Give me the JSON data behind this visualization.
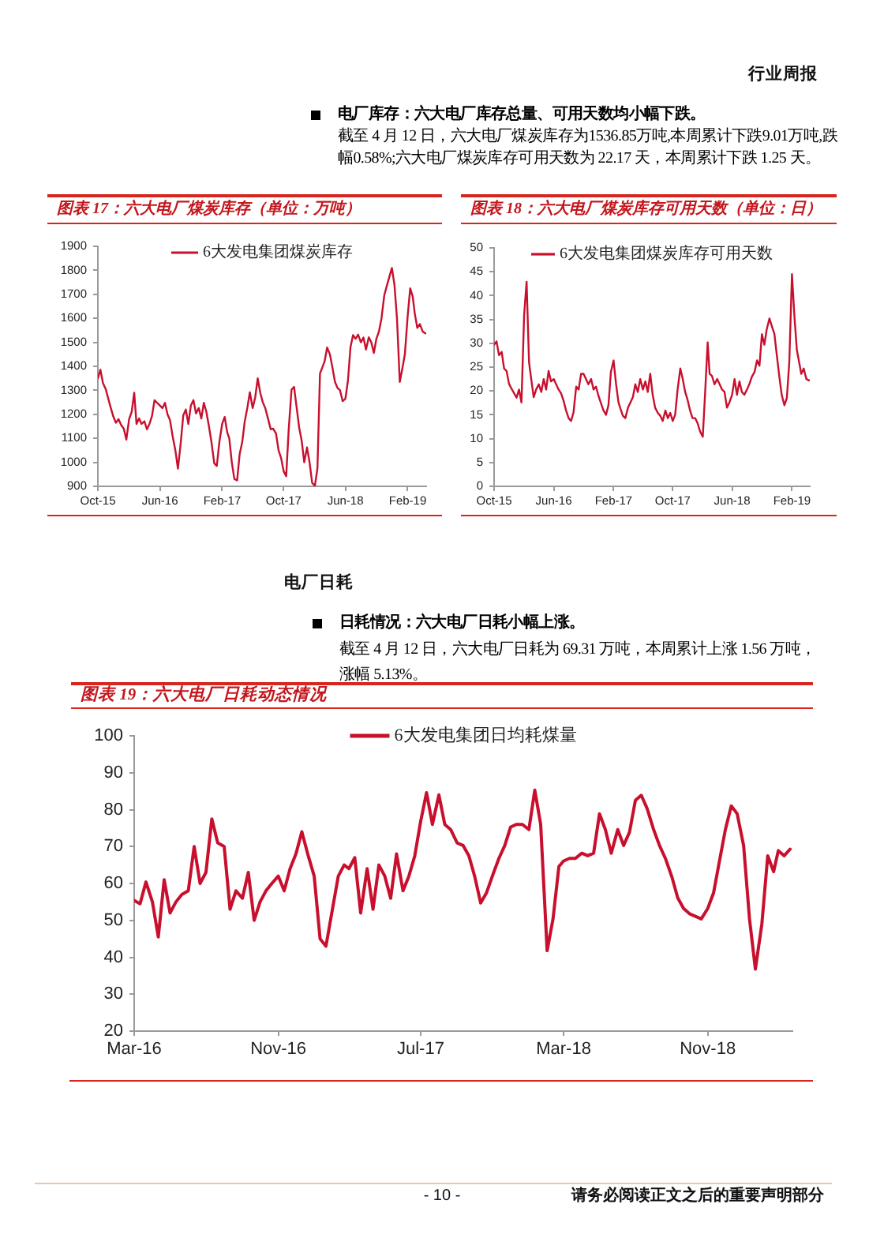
{
  "chart_data": [
    {
      "type": "line",
      "title": "图表 17：六大电厂煤炭库存（单位：万吨）",
      "annotations": [
        "行业周报",
        "电厂库存：六大电厂库存总量、可用天数均小幅下跌。",
        "截至 4 月 12 日，六大电厂煤炭库存为1536.85万吨,本周累计下跌9.01万吨,跌幅0.58%;六大电厂煤炭库存可用天数为 22.17 天，本周累计下跌 1.25 天。"
      ],
      "x": [
        "2015-10-01",
        "2015-10-11",
        "2015-10-21",
        "2015-11-01",
        "2015-11-11",
        "2015-11-21",
        "2015-12-01",
        "2015-12-11",
        "2015-12-21",
        "2016-01-01",
        "2016-01-11",
        "2016-01-21",
        "2016-02-01",
        "2016-02-11",
        "2016-02-21",
        "2016-03-01",
        "2016-03-11",
        "2016-03-21",
        "2016-04-01",
        "2016-04-11",
        "2016-04-21",
        "2016-05-01",
        "2016-05-11",
        "2016-05-21",
        "2016-06-01",
        "2016-06-11",
        "2016-06-21",
        "2016-07-01",
        "2016-07-11",
        "2016-07-21",
        "2016-08-01",
        "2016-08-11",
        "2016-08-21",
        "2016-09-01",
        "2016-09-11",
        "2016-09-21",
        "2016-10-01",
        "2016-10-11",
        "2016-10-21",
        "2016-11-01",
        "2016-11-11",
        "2016-11-21",
        "2016-12-01",
        "2016-12-11",
        "2016-12-21",
        "2017-01-01",
        "2017-01-11",
        "2017-01-21",
        "2017-02-01",
        "2017-02-11",
        "2017-02-21",
        "2017-03-01",
        "2017-03-11",
        "2017-03-21",
        "2017-04-01",
        "2017-04-11",
        "2017-04-21",
        "2017-05-01",
        "2017-05-11",
        "2017-05-21",
        "2017-06-01",
        "2017-06-11",
        "2017-06-21",
        "2017-07-01",
        "2017-07-11",
        "2017-07-21",
        "2017-08-01",
        "2017-08-11",
        "2017-08-21",
        "2017-09-01",
        "2017-09-11",
        "2017-09-21",
        "2017-10-01",
        "2017-10-11",
        "2017-10-21",
        "2017-11-01",
        "2017-11-11",
        "2017-11-21",
        "2017-12-01",
        "2017-12-11",
        "2017-12-21",
        "2018-01-01",
        "2018-01-11",
        "2018-01-21",
        "2018-02-01",
        "2018-02-11",
        "2018-02-21",
        "2018-03-01",
        "2018-03-11",
        "2018-03-21",
        "2018-04-01",
        "2018-04-11",
        "2018-04-21",
        "2018-05-01",
        "2018-05-11",
        "2018-05-21",
        "2018-06-01",
        "2018-06-11",
        "2018-06-21",
        "2018-07-01",
        "2018-07-11",
        "2018-07-21",
        "2018-08-01",
        "2018-08-11",
        "2018-08-21",
        "2018-09-01",
        "2018-09-11",
        "2018-09-21",
        "2018-10-01",
        "2018-10-11",
        "2018-10-21",
        "2018-11-01",
        "2018-11-11",
        "2018-11-21",
        "2018-12-01",
        "2018-12-11",
        "2018-12-21",
        "2019-01-01",
        "2019-01-11",
        "2019-01-21",
        "2019-02-01",
        "2019-02-11",
        "2019-02-21",
        "2019-03-01",
        "2019-03-11",
        "2019-03-21",
        "2019-04-01",
        "2019-04-12"
      ],
      "series": [
        {
          "name": "6大发电集团煤炭库存",
          "color": "#c8102e",
          "values": [
            1350,
            1386,
            1330,
            1305,
            1265,
            1226,
            1190,
            1165,
            1180,
            1155,
            1140,
            1095,
            1180,
            1210,
            1290,
            1160,
            1183,
            1160,
            1171,
            1138,
            1160,
            1193,
            1259,
            1248,
            1237,
            1226,
            1248,
            1200,
            1175,
            1110,
            1050,
            974,
            1070,
            1195,
            1220,
            1160,
            1237,
            1259,
            1204,
            1226,
            1183,
            1248,
            1210,
            1150,
            1084,
            996,
            985,
            1084,
            1160,
            1189,
            1125,
            1100,
            1000,
            931,
            925,
            1035,
            1084,
            1171,
            1226,
            1292,
            1226,
            1270,
            1350,
            1290,
            1250,
            1225,
            1180,
            1138,
            1140,
            1120,
            1050,
            1018,
            963,
            942,
            1138,
            1303,
            1314,
            1230,
            1145,
            1090,
            1000,
            1062,
            1000,
            915,
            902,
            975,
            1370,
            1392,
            1420,
            1478,
            1450,
            1395,
            1335,
            1310,
            1300,
            1255,
            1265,
            1340,
            1480,
            1530,
            1515,
            1532,
            1500,
            1520,
            1470,
            1521,
            1500,
            1456,
            1515,
            1545,
            1600,
            1696,
            1735,
            1773,
            1810,
            1740,
            1600,
            1335,
            1390,
            1450,
            1609,
            1725,
            1690,
            1620,
            1560,
            1576,
            1545,
            1537
          ]
        }
      ],
      "xlim": [
        "2015-10-01",
        "2019-04-15"
      ],
      "xticks": [
        {
          "value": "2015-10",
          "label": "Oct-15"
        },
        {
          "value": "2016-06",
          "label": "Jun-16"
        },
        {
          "value": "2017-02",
          "label": "Feb-17"
        },
        {
          "value": "2017-10",
          "label": "Oct-17"
        },
        {
          "value": "2018-06",
          "label": "Jun-18"
        },
        {
          "value": "2019-02",
          "label": "Feb-19"
        }
      ],
      "ylim": [
        900,
        1900
      ],
      "yticks": [
        900,
        1000,
        1100,
        1200,
        1300,
        1400,
        1500,
        1600,
        1700,
        1800,
        1900
      ],
      "legend": "top"
    },
    {
      "type": "line",
      "title": "图表 18：六大电厂煤炭库存可用天数（单位：日）",
      "x": [
        "2015-10-01",
        "2015-10-11",
        "2015-10-21",
        "2015-11-01",
        "2015-11-11",
        "2015-11-21",
        "2015-12-01",
        "2015-12-11",
        "2015-12-21",
        "2016-01-01",
        "2016-01-11",
        "2016-01-21",
        "2016-02-01",
        "2016-02-11",
        "2016-02-21",
        "2016-03-01",
        "2016-03-11",
        "2016-03-21",
        "2016-04-01",
        "2016-04-11",
        "2016-04-21",
        "2016-05-01",
        "2016-05-11",
        "2016-05-21",
        "2016-06-01",
        "2016-06-11",
        "2016-06-21",
        "2016-07-01",
        "2016-07-11",
        "2016-07-21",
        "2016-08-01",
        "2016-08-11",
        "2016-08-21",
        "2016-09-01",
        "2016-09-11",
        "2016-09-21",
        "2016-10-01",
        "2016-10-11",
        "2016-10-21",
        "2016-11-01",
        "2016-11-11",
        "2016-11-21",
        "2016-12-01",
        "2016-12-11",
        "2016-12-21",
        "2017-01-01",
        "2017-01-11",
        "2017-01-21",
        "2017-02-01",
        "2017-02-11",
        "2017-02-21",
        "2017-03-01",
        "2017-03-11",
        "2017-03-21",
        "2017-04-01",
        "2017-04-11",
        "2017-04-21",
        "2017-05-01",
        "2017-05-11",
        "2017-05-21",
        "2017-06-01",
        "2017-06-11",
        "2017-06-21",
        "2017-07-01",
        "2017-07-11",
        "2017-07-21",
        "2017-08-01",
        "2017-08-11",
        "2017-08-21",
        "2017-09-01",
        "2017-09-11",
        "2017-09-21",
        "2017-10-01",
        "2017-10-11",
        "2017-10-21",
        "2017-11-01",
        "2017-11-11",
        "2017-11-21",
        "2017-12-01",
        "2017-12-11",
        "2017-12-21",
        "2018-01-01",
        "2018-01-11",
        "2018-01-21",
        "2018-02-01",
        "2018-02-11",
        "2018-02-21",
        "2018-03-01",
        "2018-03-11",
        "2018-03-21",
        "2018-04-01",
        "2018-04-11",
        "2018-04-21",
        "2018-05-01",
        "2018-05-11",
        "2018-05-21",
        "2018-06-01",
        "2018-06-11",
        "2018-06-21",
        "2018-07-01",
        "2018-07-11",
        "2018-07-21",
        "2018-08-01",
        "2018-08-11",
        "2018-08-21",
        "2018-09-01",
        "2018-09-11",
        "2018-09-21",
        "2018-10-01",
        "2018-10-11",
        "2018-10-21",
        "2018-11-01",
        "2018-11-11",
        "2018-11-21",
        "2018-12-01",
        "2018-12-11",
        "2018-12-21",
        "2019-01-01",
        "2019-01-11",
        "2019-01-21",
        "2019-02-01",
        "2019-02-11",
        "2019-02-21",
        "2019-03-01",
        "2019-03-11",
        "2019-03-21",
        "2019-04-01",
        "2019-04-12"
      ],
      "series": [
        {
          "name": "6大发电集团煤炭库存可用天数",
          "color": "#c8102e",
          "values": [
            29.7,
            30.4,
            27.5,
            28.2,
            24.7,
            24.2,
            21.5,
            20.5,
            19.6,
            18.6,
            20.3,
            17.6,
            36,
            42.9,
            26,
            22.5,
            18.7,
            20.3,
            21.4,
            19.8,
            22.5,
            20.3,
            24.2,
            22,
            22.5,
            21.4,
            20.3,
            19.5,
            18,
            16,
            14.3,
            13.7,
            15.5,
            20.9,
            20.3,
            23.6,
            23.6,
            22.5,
            21.4,
            22.5,
            20.3,
            20.9,
            19,
            17.5,
            16,
            15,
            17,
            24,
            26.4,
            21.5,
            17.6,
            16.3,
            14.8,
            14.3,
            16.5,
            17.6,
            18.7,
            21.4,
            19.8,
            22.5,
            20.3,
            22,
            19.8,
            23.6,
            19.2,
            16.5,
            15.4,
            14.8,
            13.7,
            15.9,
            14.3,
            15.4,
            13.7,
            15,
            20.3,
            24.7,
            22.5,
            19.8,
            18.1,
            15.9,
            14.3,
            14.3,
            13.2,
            11.5,
            10.4,
            20,
            30.2,
            23.6,
            23.1,
            21.4,
            22.5,
            21.4,
            20.3,
            19.8,
            16.5,
            17.6,
            19.2,
            22.5,
            19.2,
            22,
            19.8,
            19.2,
            20.3,
            21.5,
            23,
            24,
            26.4,
            25.3,
            31.9,
            29.7,
            33,
            35.2,
            33.5,
            32,
            27.5,
            23.1,
            19.2,
            17,
            18.5,
            26,
            44.5,
            35.7,
            28.6,
            26.4,
            23.6,
            24.7,
            22.5,
            22.2
          ]
        }
      ],
      "xlim": [
        "2015-10-01",
        "2019-04-15"
      ],
      "xticks": [
        {
          "value": "2015-10",
          "label": "Oct-15"
        },
        {
          "value": "2016-06",
          "label": "Jun-16"
        },
        {
          "value": "2017-02",
          "label": "Feb-17"
        },
        {
          "value": "2017-10",
          "label": "Oct-17"
        },
        {
          "value": "2018-06",
          "label": "Jun-18"
        },
        {
          "value": "2019-02",
          "label": "Feb-19"
        }
      ],
      "ylim": [
        0,
        50
      ],
      "yticks": [
        0,
        5,
        10,
        15,
        20,
        25,
        30,
        35,
        40,
        45,
        50
      ],
      "legend": "top"
    },
    {
      "type": "line",
      "title": "图表 19：六大电厂日耗动态情况",
      "annotations": [
        "电厂日耗",
        "日耗情况：六大电厂日耗小幅上涨。",
        "截至 4 月 12 日，六大电厂日耗为 69.31 万吨，本周累计上涨 1.56 万吨，涨幅 5.13%。",
        "- 10 -",
        "请务必阅读正文之后的重要声明部分"
      ],
      "x": [
        "2016-03-01",
        "2016-03-11",
        "2016-03-21",
        "2016-04-01",
        "2016-04-11",
        "2016-04-21",
        "2016-05-01",
        "2016-05-11",
        "2016-05-21",
        "2016-06-01",
        "2016-06-11",
        "2016-06-21",
        "2016-07-01",
        "2016-07-11",
        "2016-07-21",
        "2016-08-01",
        "2016-08-11",
        "2016-08-21",
        "2016-09-01",
        "2016-09-11",
        "2016-09-21",
        "2016-10-01",
        "2016-10-11",
        "2016-10-21",
        "2016-11-01",
        "2016-11-11",
        "2016-11-21",
        "2016-12-01",
        "2016-12-11",
        "2016-12-21",
        "2017-01-01",
        "2017-01-11",
        "2017-01-21",
        "2017-02-01",
        "2017-02-11",
        "2017-02-21",
        "2017-03-01",
        "2017-03-11",
        "2017-03-21",
        "2017-04-01",
        "2017-04-11",
        "2017-04-21",
        "2017-05-01",
        "2017-05-11",
        "2017-05-21",
        "2017-06-01",
        "2017-06-11",
        "2017-06-21",
        "2017-07-01",
        "2017-07-11",
        "2017-07-21",
        "2017-08-01",
        "2017-08-11",
        "2017-08-21",
        "2017-09-01",
        "2017-09-11",
        "2017-09-21",
        "2017-10-01",
        "2017-10-11",
        "2017-10-21",
        "2017-11-01",
        "2017-11-11",
        "2017-11-21",
        "2017-12-01",
        "2017-12-11",
        "2017-12-21",
        "2018-01-01",
        "2018-01-11",
        "2018-01-21",
        "2018-02-01",
        "2018-02-11",
        "2018-02-21",
        "2018-03-01",
        "2018-03-11",
        "2018-03-21",
        "2018-04-01",
        "2018-04-11",
        "2018-04-21",
        "2018-05-01",
        "2018-05-11",
        "2018-05-21",
        "2018-06-01",
        "2018-06-11",
        "2018-06-21",
        "2018-07-01",
        "2018-07-11",
        "2018-07-21",
        "2018-08-01",
        "2018-08-11",
        "2018-08-21",
        "2018-09-01",
        "2018-09-11",
        "2018-09-21",
        "2018-10-01",
        "2018-10-11",
        "2018-10-21",
        "2018-11-01",
        "2018-11-11",
        "2018-11-21",
        "2018-12-01",
        "2018-12-11",
        "2018-12-21",
        "2019-01-01",
        "2019-01-11",
        "2019-01-21",
        "2019-02-01",
        "2019-02-11",
        "2019-02-21",
        "2019-03-01",
        "2019-03-11",
        "2019-03-21"
      ],
      "series": [
        {
          "name": "6大发电集团日均耗煤量",
          "color": "#c8102e",
          "values": [
            55.4,
            54.5,
            60.4,
            55,
            45.5,
            61,
            52,
            55,
            57,
            58,
            70,
            60,
            63,
            77.5,
            71,
            70,
            53,
            58,
            56,
            63,
            50,
            55,
            58,
            60,
            62,
            58,
            64,
            68,
            74,
            68,
            62,
            45,
            43,
            53,
            62,
            65,
            64,
            67,
            52,
            64,
            53,
            65,
            62,
            56,
            68,
            58,
            62,
            67.5,
            76.8,
            84.6,
            76,
            84,
            76,
            74.6,
            71,
            70.3,
            67.5,
            61.8,
            54.7,
            57.5,
            62.5,
            66.8,
            70.3,
            75.3,
            76,
            76,
            74.6,
            85.3,
            76,
            41.8,
            50.4,
            64.6,
            66.1,
            66.8,
            66.8,
            68.2,
            67.5,
            68.2,
            78.9,
            74.6,
            68.2,
            74.6,
            70.3,
            73.9,
            82.5,
            83.9,
            80.3,
            74.6,
            70.3,
            66.8,
            61.8,
            56.1,
            53.2,
            51.8,
            51.1,
            50.4,
            53.2,
            57.5,
            66.1,
            74.6,
            81,
            78.9,
            70.3,
            50.4,
            36.8,
            49,
            67.5,
            63.2,
            68.9,
            67.5,
            69.3
          ]
        }
      ],
      "xlim": [
        "2016-03-01",
        "2019-03-25"
      ],
      "xticks": [
        {
          "value": "2016-03",
          "label": "Mar-16"
        },
        {
          "value": "2016-11",
          "label": "Nov-16"
        },
        {
          "value": "2017-07",
          "label": "Jul-17"
        },
        {
          "value": "2018-03",
          "label": "Mar-18"
        },
        {
          "value": "2018-11",
          "label": "Nov-18"
        }
      ],
      "ylim": [
        20,
        100
      ],
      "yticks": [
        20,
        30,
        40,
        50,
        60,
        70,
        80,
        90,
        100
      ],
      "legend": "top"
    }
  ]
}
